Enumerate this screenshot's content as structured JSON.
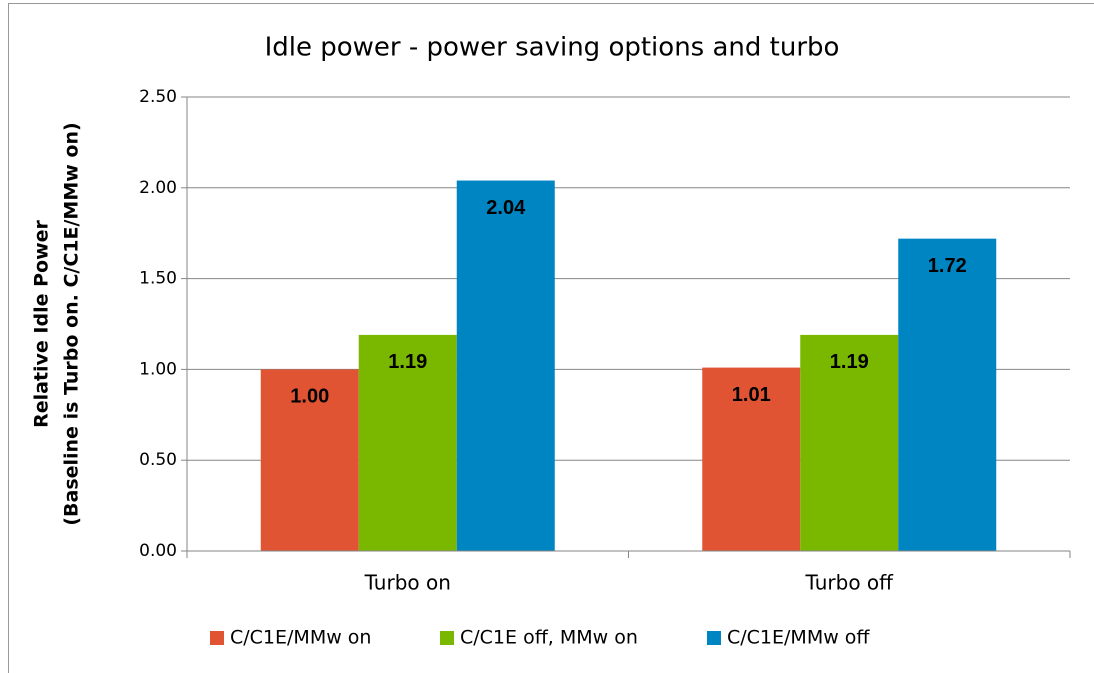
{
  "chart_data": {
    "type": "bar",
    "title": "Idle power - power saving options and turbo",
    "ylabel": [
      "Relative Idle Power",
      "(Baseline is Turbo on. C/C1E/MMw on)"
    ],
    "categories": [
      "Turbo on",
      "Turbo off"
    ],
    "series": [
      {
        "name": "C/C1E/MMw on",
        "color": "#e05434",
        "values": [
          1.0,
          1.01
        ],
        "value_labels": [
          "1.00",
          "1.01"
        ]
      },
      {
        "name": "C/C1E off, MMw on",
        "color": "#7ab800",
        "values": [
          1.19,
          1.19
        ],
        "value_labels": [
          "1.19",
          "1.19"
        ]
      },
      {
        "name": "C/C1E/MMw off",
        "color": "#0085c3",
        "values": [
          2.04,
          1.72
        ],
        "value_labels": [
          "2.04",
          "1.72"
        ]
      }
    ],
    "ylim": [
      0,
      2.5
    ],
    "yticks": [
      {
        "value": 0,
        "label": "0.00"
      },
      {
        "value": 0.5,
        "label": "0.50"
      },
      {
        "value": 1,
        "label": "1.00"
      },
      {
        "value": 1.5,
        "label": "1.50"
      },
      {
        "value": 2,
        "label": "2.00"
      },
      {
        "value": 2.5,
        "label": "2.50"
      }
    ],
    "grid": true,
    "legend": "bottom"
  }
}
